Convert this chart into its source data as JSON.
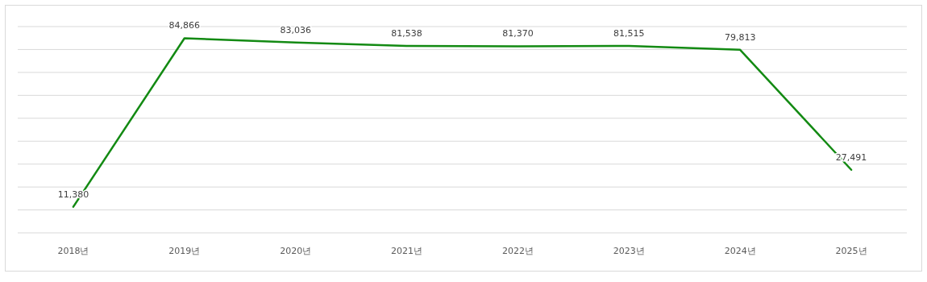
{
  "chart_data": {
    "type": "line",
    "categories": [
      "2018년",
      "2019년",
      "2020년",
      "2021년",
      "2022년",
      "2023년",
      "2024년",
      "2025년"
    ],
    "values": [
      11380,
      84866,
      83036,
      81538,
      81370,
      81515,
      79813,
      27491
    ],
    "value_labels": [
      "11,380",
      "84,866",
      "83,036",
      "81,538",
      "81,370",
      "81,515",
      "79,813",
      "27,491"
    ],
    "color": "#138a13",
    "tick_labels": "x",
    "grid": "y",
    "marker": "none",
    "line_style": "solid"
  }
}
